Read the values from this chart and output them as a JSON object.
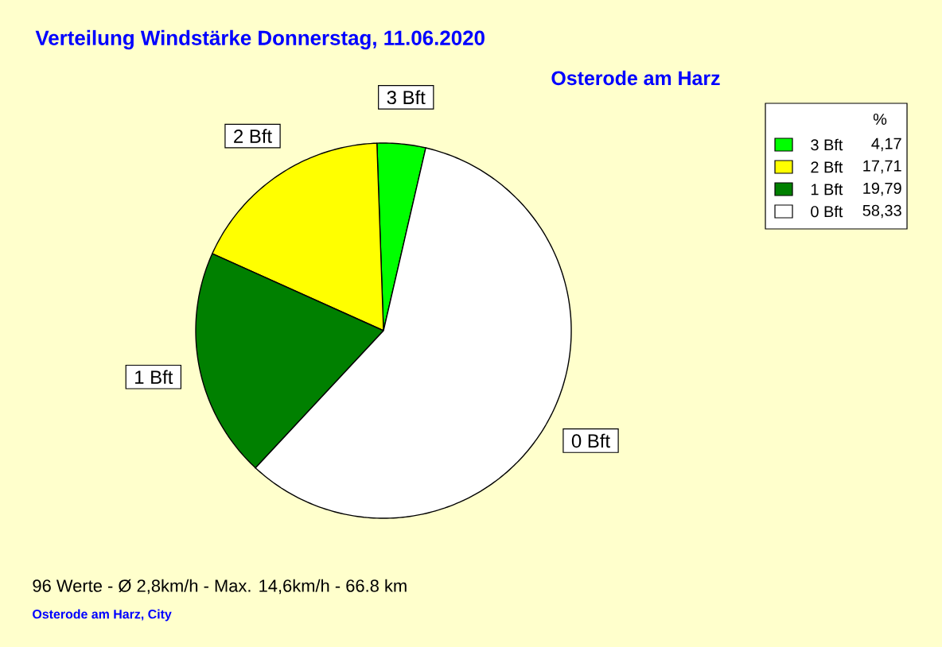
{
  "chart_data": {
    "type": "pie",
    "title": "Verteilung Windstärke  Donnerstag, 11.06.2020",
    "subtitle": "Osterode am Harz",
    "categories": [
      "3 Bft",
      "2 Bft",
      "1 Bft",
      "0 Bft"
    ],
    "values": [
      4.17,
      17.71,
      19.79,
      58.33
    ],
    "value_labels": [
      "4,17",
      "17,71",
      "19,79",
      "58,33"
    ],
    "colors": [
      "#00ff00",
      "#ffff00",
      "#008000",
      "#ffffff"
    ],
    "legend": "top right",
    "legend_title": "%",
    "annotations": [
      "96 Werte   -   Ø 2,8km/h  -  Max. 14,6km/h   -   66.8 km",
      "Osterode am Harz, City"
    ]
  }
}
